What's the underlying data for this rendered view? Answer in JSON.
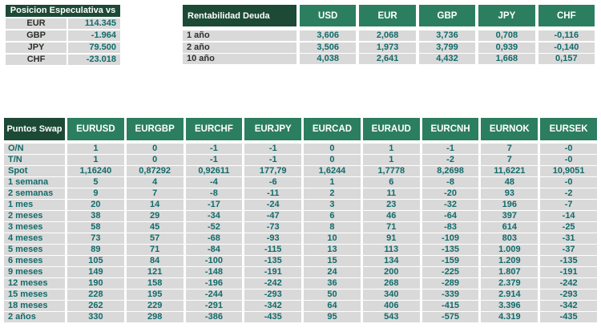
{
  "colors": {
    "header_dark_green": "#1c4a36",
    "header_green": "#2c7e60",
    "cell_background": "#d9d9d9",
    "number_text": "#136a6a",
    "label_text": "#2b2f2b"
  },
  "speculative_table": {
    "title": "Posicion Especulativa vs USD",
    "rows": [
      {
        "label": "EUR",
        "value": "114.345"
      },
      {
        "label": "GBP",
        "value": "-1.964"
      },
      {
        "label": "JPY",
        "value": "79.500"
      },
      {
        "label": "CHF",
        "value": "-23.018"
      }
    ]
  },
  "debt_yield_table": {
    "title": "Rentabilidad Deuda",
    "columns": [
      "USD",
      "EUR",
      "GBP",
      "JPY",
      "CHF"
    ],
    "rows": [
      {
        "label": "1 año",
        "values": [
          "3,606",
          "2,068",
          "3,736",
          "0,708",
          "-0,116"
        ]
      },
      {
        "label": "2 año",
        "values": [
          "3,506",
          "1,973",
          "3,799",
          "0,939",
          "-0,140"
        ]
      },
      {
        "label": "10 año",
        "values": [
          "4,038",
          "2,641",
          "4,432",
          "1,668",
          "0,157"
        ]
      }
    ]
  },
  "swap_points_table": {
    "title": "Puntos Swap",
    "columns": [
      "EURUSD",
      "EURGBP",
      "EURCHF",
      "EURJPY",
      "EURCAD",
      "EURAUD",
      "EURCNH",
      "EURNOK",
      "EURSEK"
    ],
    "rows": [
      {
        "label": "O/N",
        "values": [
          "1",
          "0",
          "-1",
          "-1",
          "0",
          "1",
          "-1",
          "7",
          "-0"
        ]
      },
      {
        "label": "T/N",
        "values": [
          "1",
          "0",
          "-1",
          "-1",
          "0",
          "1",
          "-2",
          "7",
          "-0"
        ]
      },
      {
        "label": "Spot",
        "values": [
          "1,16240",
          "0,87292",
          "0,92611",
          "177,79",
          "1,6244",
          "1,7778",
          "8,2698",
          "11,6221",
          "10,9051"
        ]
      },
      {
        "label": "1 semana",
        "values": [
          "5",
          "4",
          "-4",
          "-6",
          "1",
          "6",
          "-8",
          "48",
          "-0"
        ]
      },
      {
        "label": "2 semanas",
        "values": [
          "9",
          "7",
          "-8",
          "-11",
          "2",
          "11",
          "-20",
          "93",
          "-2"
        ]
      },
      {
        "label": "1 mes",
        "values": [
          "20",
          "14",
          "-17",
          "-24",
          "3",
          "23",
          "-32",
          "196",
          "-7"
        ]
      },
      {
        "label": "2 meses",
        "values": [
          "38",
          "29",
          "-34",
          "-47",
          "6",
          "46",
          "-64",
          "397",
          "-14"
        ]
      },
      {
        "label": "3 meses",
        "values": [
          "58",
          "45",
          "-52",
          "-73",
          "8",
          "71",
          "-83",
          "614",
          "-25"
        ]
      },
      {
        "label": "4 meses",
        "values": [
          "73",
          "57",
          "-68",
          "-93",
          "10",
          "91",
          "-109",
          "803",
          "-31"
        ]
      },
      {
        "label": "5 meses",
        "values": [
          "89",
          "71",
          "-84",
          "-115",
          "13",
          "113",
          "-135",
          "1.009",
          "-37"
        ]
      },
      {
        "label": "6 meses",
        "values": [
          "105",
          "84",
          "-100",
          "-135",
          "15",
          "134",
          "-159",
          "1.209",
          "-135"
        ]
      },
      {
        "label": "9 meses",
        "values": [
          "149",
          "121",
          "-148",
          "-191",
          "24",
          "200",
          "-225",
          "1.807",
          "-191"
        ]
      },
      {
        "label": "12 meses",
        "values": [
          "190",
          "158",
          "-196",
          "-242",
          "36",
          "268",
          "-289",
          "2.379",
          "-242"
        ]
      },
      {
        "label": "15 meses",
        "values": [
          "228",
          "195",
          "-244",
          "-293",
          "50",
          "340",
          "-339",
          "2.914",
          "-293"
        ]
      },
      {
        "label": "18 meses",
        "values": [
          "262",
          "229",
          "-291",
          "-342",
          "64",
          "406",
          "-415",
          "3.396",
          "-342"
        ]
      },
      {
        "label": "2 años",
        "values": [
          "330",
          "298",
          "-386",
          "-435",
          "95",
          "543",
          "-575",
          "4.319",
          "-435"
        ]
      }
    ]
  }
}
